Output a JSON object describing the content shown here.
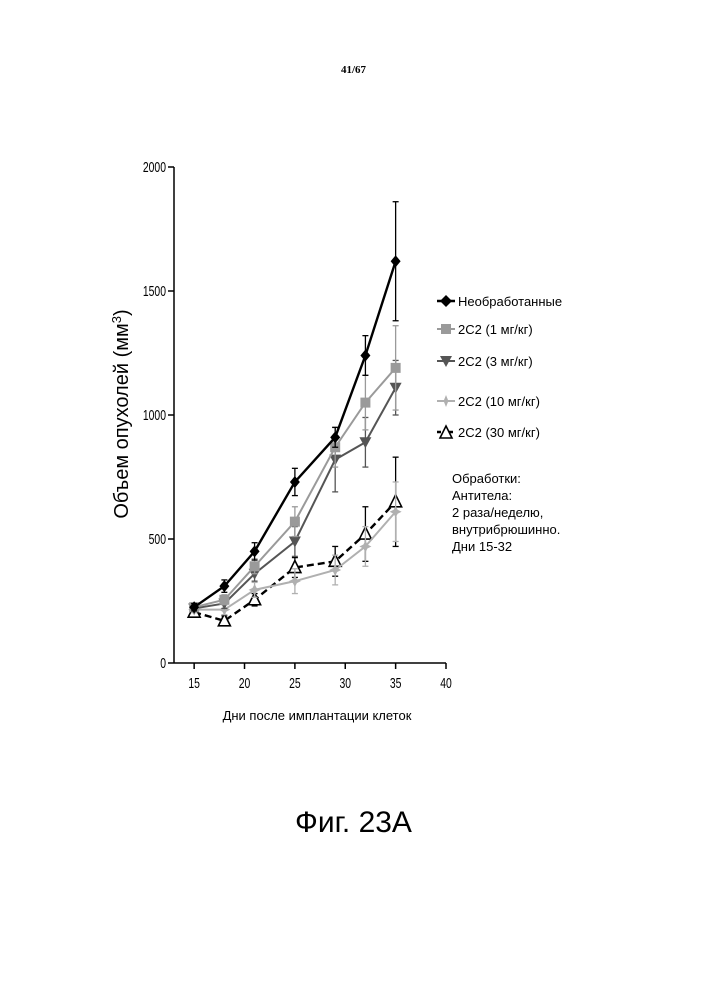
{
  "page_number": "41/67",
  "figure_caption": "Фиг. 23А",
  "note": {
    "lines": [
      "Обработки:",
      "Антитела:",
      "2 раза/неделю,",
      "внутрибрюшинно.",
      "Дни 15-32"
    ]
  },
  "chart_data": {
    "type": "line",
    "title": "",
    "xlabel": "Дни после имплантации клеток",
    "ylabel": "Объем опухолей (мм",
    "ylabel_sup": "3",
    "ylabel_close": ")",
    "xlim": [
      13,
      40
    ],
    "ylim": [
      0,
      2000
    ],
    "x_ticks": [
      15,
      20,
      25,
      30,
      35,
      40
    ],
    "x_tick_labels": [
      "15",
      "20",
      "25",
      "30",
      "35",
      "40"
    ],
    "y_ticks": [
      0,
      500,
      1000,
      1500,
      2000
    ],
    "y_tick_labels": [
      "0",
      "500",
      "1000",
      "1500",
      "2000"
    ],
    "grid": false,
    "legend_position": "right",
    "x": [
      15,
      18,
      21,
      25,
      29,
      32,
      35
    ],
    "series": [
      {
        "name": "Необработанные",
        "values": [
          225,
          310,
          450,
          730,
          910,
          1240,
          1620
        ],
        "errors": [
          15,
          25,
          35,
          55,
          40,
          80,
          240
        ],
        "color": "#000000",
        "marker": "diamond",
        "dashed": false,
        "width": 2.4
      },
      {
        "name": "2С2 (1 мг/кг)",
        "values": [
          225,
          255,
          390,
          570,
          870,
          1050,
          1190
        ],
        "errors": [
          12,
          20,
          30,
          60,
          80,
          110,
          170
        ],
        "color": "#9a9a9a",
        "marker": "square",
        "dashed": false,
        "width": 2.0
      },
      {
        "name": "2С2 (3 мг/кг)",
        "values": [
          220,
          240,
          360,
          490,
          820,
          890,
          1110
        ],
        "errors": [
          12,
          20,
          30,
          60,
          130,
          100,
          110
        ],
        "color": "#555555",
        "marker": "triangle-down",
        "dashed": false,
        "width": 2.0
      },
      {
        "name": "2С2 (10 мг/кг)",
        "values": [
          215,
          215,
          295,
          330,
          375,
          470,
          610
        ],
        "errors": [
          12,
          20,
          30,
          50,
          60,
          80,
          120
        ],
        "color": "#b0b0b0",
        "marker": "star",
        "dashed": false,
        "width": 2.0
      },
      {
        "name": "2С2 (30 мг/кг)",
        "values": [
          205,
          170,
          255,
          385,
          410,
          520,
          650
        ],
        "errors": [
          12,
          20,
          25,
          40,
          60,
          110,
          180
        ],
        "color": "#000000",
        "marker": "triangle-open",
        "dashed": true,
        "width": 2.4
      }
    ]
  }
}
